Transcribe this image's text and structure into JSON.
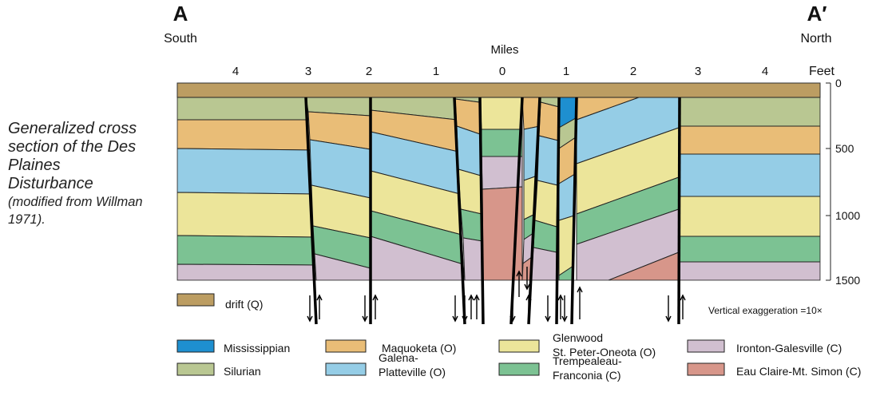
{
  "caption": {
    "main": "Generalized cross section of the Des Plaines Disturbance",
    "source": "(modified from Willman 1971)."
  },
  "ends": {
    "left": {
      "letter": "A",
      "direction": "South"
    },
    "right": {
      "letter": "A′",
      "direction": "North"
    }
  },
  "distance": {
    "label": "Miles",
    "ticks": [
      "4",
      "3",
      "2",
      "1",
      "0",
      "1",
      "2",
      "3",
      "4"
    ]
  },
  "depth": {
    "label": "Feet",
    "ticks": [
      "0",
      "500",
      "1000",
      "1500"
    ]
  },
  "exaggeration_note": "Vertical exaggeration =10×",
  "legend": [
    {
      "key": "drift",
      "label": "drift (Q)",
      "color": "#bc9d62"
    },
    {
      "key": "miss",
      "label": "Mississippian",
      "color": "#1e8fd0"
    },
    {
      "key": "silurian",
      "label": "Silurian",
      "color": "#b9c792"
    },
    {
      "key": "maquoketa",
      "label": "Maquoketa (O)",
      "color": "#e9bd77"
    },
    {
      "key": "galena",
      "label": "Galena-\nPlatteville (O)",
      "color": "#95cde6"
    },
    {
      "key": "glenwood",
      "label": "Glenwood\nSt. Peter-Oneota (O)",
      "color": "#ece59a"
    },
    {
      "key": "trempealeau",
      "label": "Trempealeau-\nFranconia (C)",
      "color": "#7cc293"
    },
    {
      "key": "ironton",
      "label": "Ironton-Galesville (C)",
      "color": "#d1bfd0"
    },
    {
      "key": "eauclaire",
      "label": "Eau Claire-Mt. Simon (C)",
      "color": "#d7968a"
    }
  ]
}
